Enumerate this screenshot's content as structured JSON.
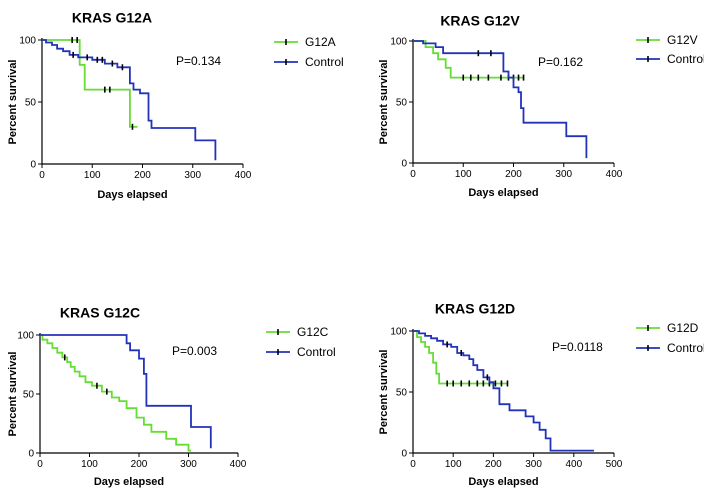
{
  "chart_data": [
    {
      "type": "line",
      "title": "KRAS G12A",
      "xlabel": "Days elapsed",
      "ylabel": "Percent survival",
      "xlim": [
        0,
        400
      ],
      "ylim": [
        0,
        100
      ],
      "xticks": [
        "0",
        "100",
        "200",
        "300",
        "400"
      ],
      "yticks": [
        "0",
        "50",
        "100"
      ],
      "pvalue": "P=0.134",
      "series": [
        {
          "name": "G12A",
          "color": "#66dd33",
          "x": [
            0,
            75,
            75,
            85,
            85,
            175,
            175,
            190
          ],
          "y": [
            100,
            100,
            80,
            80,
            60,
            60,
            30,
            30
          ],
          "censor_x": [
            60,
            70,
            125,
            135,
            180
          ],
          "censor_y": [
            100,
            100,
            60,
            60,
            30
          ]
        },
        {
          "name": "Control",
          "color": "#2233bb",
          "x": [
            0,
            8,
            8,
            20,
            20,
            30,
            30,
            42,
            42,
            55,
            55,
            72,
            72,
            100,
            100,
            125,
            125,
            150,
            150,
            175,
            175,
            182,
            182,
            195,
            195,
            212,
            212,
            218,
            218,
            305,
            305,
            345,
            345
          ],
          "y": [
            100,
            100,
            98,
            98,
            96,
            96,
            93,
            93,
            91,
            91,
            88,
            88,
            86,
            86,
            84,
            84,
            81,
            81,
            78,
            78,
            65,
            65,
            60,
            60,
            57,
            57,
            35,
            35,
            29,
            29,
            19,
            19,
            3
          ],
          "censor_x": [
            62,
            90,
            110,
            120,
            140,
            160
          ],
          "censor_y": [
            88,
            86,
            84,
            84,
            81,
            78
          ]
        }
      ],
      "legend": [
        "G12A",
        "Control"
      ]
    },
    {
      "type": "line",
      "title": "KRAS G12V",
      "xlabel": "Days elapsed",
      "ylabel": "Percent survival",
      "xlim": [
        0,
        400
      ],
      "ylim": [
        0,
        100
      ],
      "xticks": [
        "0",
        "100",
        "200",
        "300",
        "400"
      ],
      "yticks": [
        "0",
        "50",
        "100"
      ],
      "pvalue": "P=0.162",
      "series": [
        {
          "name": "G12V",
          "color": "#66dd33",
          "x": [
            0,
            25,
            25,
            40,
            40,
            50,
            50,
            65,
            65,
            75,
            75,
            220
          ],
          "y": [
            100,
            100,
            95,
            95,
            90,
            90,
            85,
            85,
            78,
            78,
            70,
            70
          ],
          "censor_x": [
            100,
            115,
            130,
            150,
            175,
            190,
            200,
            210,
            220
          ],
          "censor_y": [
            70,
            70,
            70,
            70,
            70,
            70,
            70,
            70,
            70
          ]
        },
        {
          "name": "Control",
          "color": "#2233bb",
          "x": [
            0,
            20,
            20,
            45,
            45,
            60,
            60,
            180,
            180,
            190,
            190,
            200,
            200,
            210,
            210,
            215,
            215,
            220,
            220,
            305,
            305,
            345,
            345
          ],
          "y": [
            100,
            100,
            98,
            98,
            95,
            95,
            90,
            90,
            75,
            75,
            70,
            70,
            62,
            62,
            58,
            58,
            45,
            45,
            33,
            33,
            22,
            22,
            4
          ],
          "censor_x": [
            130,
            155
          ],
          "censor_y": [
            90,
            90
          ]
        }
      ],
      "legend": [
        "G12V",
        "Control"
      ]
    },
    {
      "type": "line",
      "title": "KRAS G12C",
      "xlabel": "Days elapsed",
      "ylabel": "Percent survival",
      "xlim": [
        0,
        400
      ],
      "ylim": [
        0,
        100
      ],
      "xticks": [
        "0",
        "100",
        "200",
        "300",
        "400"
      ],
      "yticks": [
        "0",
        "50",
        "100"
      ],
      "pvalue": "P=0.003",
      "series": [
        {
          "name": "G12C",
          "color": "#66dd33",
          "x": [
            0,
            5,
            5,
            15,
            15,
            25,
            25,
            35,
            35,
            45,
            45,
            55,
            55,
            62,
            62,
            70,
            70,
            80,
            80,
            92,
            92,
            105,
            105,
            125,
            125,
            145,
            145,
            160,
            160,
            175,
            175,
            195,
            195,
            210,
            210,
            225,
            225,
            255,
            255,
            275,
            275,
            300,
            300,
            305
          ],
          "y": [
            100,
            100,
            96,
            96,
            93,
            93,
            89,
            89,
            85,
            85,
            81,
            81,
            77,
            77,
            73,
            73,
            69,
            69,
            65,
            65,
            60,
            60,
            57,
            57,
            52,
            52,
            47,
            47,
            44,
            44,
            38,
            38,
            30,
            30,
            24,
            24,
            18,
            18,
            12,
            12,
            7,
            7,
            2,
            2
          ],
          "censor_x": [
            50,
            115,
            135
          ],
          "censor_y": [
            81,
            57,
            52
          ]
        },
        {
          "name": "Control",
          "color": "#2233bb",
          "x": [
            0,
            175,
            175,
            182,
            182,
            200,
            200,
            210,
            210,
            215,
            215,
            220,
            220,
            305,
            305,
            345,
            345
          ],
          "y": [
            100,
            100,
            93,
            93,
            87,
            87,
            80,
            80,
            67,
            67,
            40,
            40,
            40,
            40,
            22,
            22,
            4
          ],
          "censor_x": [],
          "censor_y": []
        }
      ],
      "legend": [
        "G12C",
        "Control"
      ]
    },
    {
      "type": "line",
      "title": "KRAS G12D",
      "xlabel": "Days elapsed",
      "ylabel": "Percent survival",
      "xlim": [
        0,
        500
      ],
      "ylim": [
        0,
        100
      ],
      "xticks": [
        "0",
        "100",
        "200",
        "300",
        "400",
        "500"
      ],
      "yticks": [
        "0",
        "50",
        "100"
      ],
      "pvalue": "P=0.0118",
      "series": [
        {
          "name": "G12D",
          "color": "#66dd33",
          "x": [
            0,
            10,
            10,
            20,
            20,
            30,
            30,
            40,
            40,
            50,
            50,
            58,
            58,
            65,
            65,
            235
          ],
          "y": [
            100,
            100,
            95,
            95,
            91,
            91,
            87,
            87,
            82,
            82,
            74,
            74,
            65,
            65,
            57,
            57
          ],
          "censor_x": [
            85,
            100,
            120,
            140,
            160,
            175,
            190,
            205,
            220,
            235
          ],
          "censor_y": [
            57,
            57,
            57,
            57,
            57,
            57,
            57,
            57,
            57,
            57
          ]
        },
        {
          "name": "Control",
          "color": "#2233bb",
          "x": [
            0,
            15,
            15,
            30,
            30,
            45,
            45,
            60,
            60,
            75,
            75,
            95,
            95,
            110,
            110,
            125,
            125,
            140,
            140,
            150,
            150,
            160,
            160,
            175,
            175,
            190,
            190,
            200,
            200,
            215,
            215,
            240,
            240,
            280,
            280,
            300,
            300,
            315,
            315,
            330,
            330,
            342,
            342,
            450
          ],
          "y": [
            100,
            100,
            98,
            98,
            96,
            96,
            94,
            94,
            92,
            92,
            89,
            89,
            87,
            87,
            82,
            82,
            80,
            80,
            77,
            77,
            72,
            72,
            68,
            68,
            62,
            62,
            58,
            58,
            53,
            53,
            40,
            40,
            35,
            35,
            30,
            30,
            25,
            25,
            19,
            19,
            12,
            12,
            2,
            2
          ],
          "censor_x": [
            85,
            120,
            185
          ],
          "censor_y": [
            89,
            82,
            62
          ]
        }
      ],
      "legend": [
        "G12D",
        "Control"
      ]
    }
  ]
}
